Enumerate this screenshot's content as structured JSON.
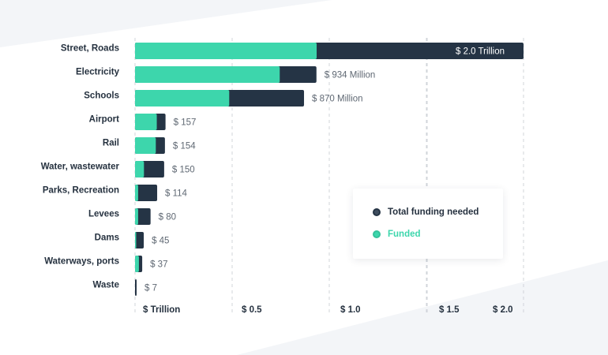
{
  "colors": {
    "total": "#253445",
    "funded": "#3dd6ac",
    "background_stripe": "#f3f5f8",
    "grid": "#d0d4da"
  },
  "legend": {
    "total_label": "Total funding needed",
    "funded_label": "Funded"
  },
  "chart_data": {
    "type": "bar",
    "orientation": "horizontal",
    "stacked": "overlay",
    "categories": [
      "Street, Roads",
      "Electricity",
      "Schools",
      "Airport",
      "Rail",
      "Water, wastewater",
      "Parks, Recreation",
      "Levees",
      "Dams",
      "Waterways, ports",
      "Waste"
    ],
    "series": [
      {
        "name": "Total funding needed",
        "values": [
          2000,
          934,
          870,
          157,
          154,
          150,
          114,
          80,
          45,
          37,
          7
        ]
      },
      {
        "name": "Funded",
        "values": [
          935,
          745,
          485,
          112,
          107,
          46,
          16,
          16,
          6,
          20,
          0
        ]
      }
    ],
    "value_labels": [
      "$ 2.0 Trillion",
      "$ 934 Million",
      "$ 870  Million",
      "$ 157",
      "$ 154",
      "$ 150",
      "$ 114",
      "$ 80",
      "$ 45",
      "$ 37",
      "$ 7"
    ],
    "x_ticks": [
      {
        "value": 0,
        "label": "$ Trillion"
      },
      {
        "value": 500,
        "label": "$ 0.5"
      },
      {
        "value": 1000,
        "label": "$ 1.0"
      },
      {
        "value": 1500,
        "label": "$ 1.5"
      },
      {
        "value": 2000,
        "label": "$ 2.0"
      }
    ],
    "xlim": [
      0,
      2000
    ],
    "grid": true,
    "legend_position": "bottom-right"
  }
}
